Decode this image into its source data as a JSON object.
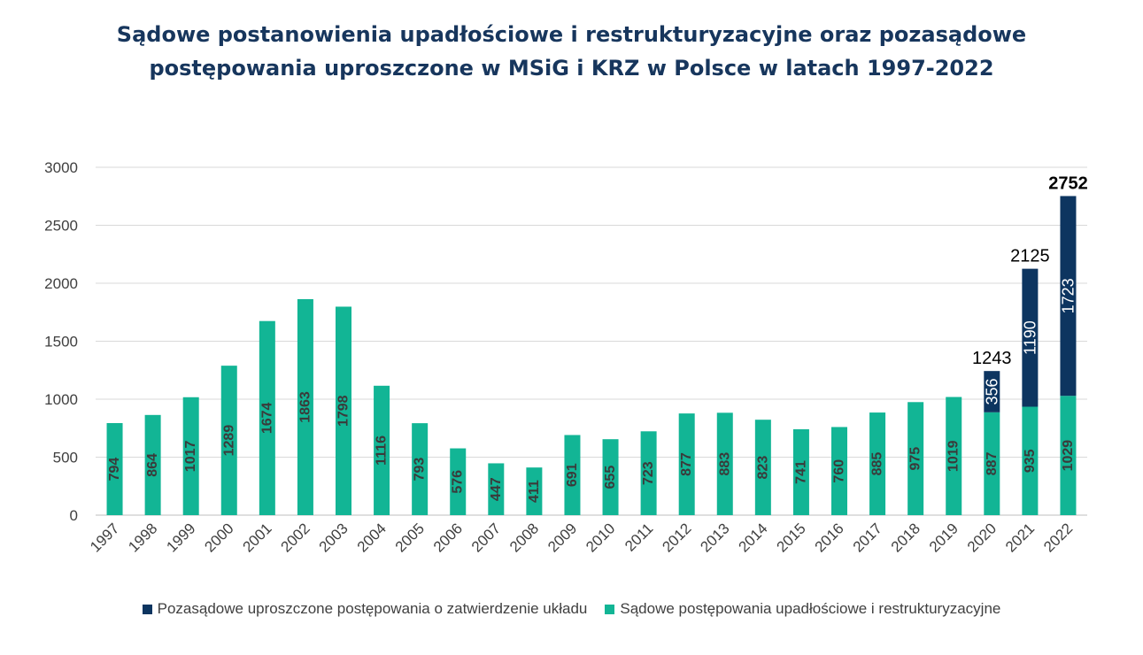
{
  "colors": {
    "court": "#12b595",
    "out_of_court": "#0d3560",
    "title": "#17365d",
    "grid": "#d9d9d9",
    "axis_text": "#404040"
  },
  "chart_data": {
    "type": "bar",
    "stacked": true,
    "title_lines": [
      "Sądowe postanowienia upadłościowe i restrukturyzacyjne oraz pozasądowe",
      "postępowania uproszczone w MSiG i KRZ w Polsce w latach 1997-2022"
    ],
    "categories": [
      "1997",
      "1998",
      "1999",
      "2000",
      "2001",
      "2002",
      "2003",
      "2004",
      "2005",
      "2006",
      "2007",
      "2008",
      "2009",
      "2010",
      "2011",
      "2012",
      "2013",
      "2014",
      "2015",
      "2016",
      "2017",
      "2018",
      "2019",
      "2020",
      "2021",
      "2022"
    ],
    "series": [
      {
        "name": "Sądowe postępowania upadłościowe i restrukturyzacyjne",
        "color_key": "court",
        "values": [
          794,
          864,
          1017,
          1289,
          1674,
          1863,
          1798,
          1116,
          793,
          576,
          447,
          411,
          691,
          655,
          723,
          877,
          883,
          823,
          741,
          760,
          885,
          975,
          1019,
          887,
          935,
          1029
        ]
      },
      {
        "name": "Pozasądowe uproszczone postępowania o zatwierdzenie układu",
        "color_key": "out_of_court",
        "values": [
          0,
          0,
          0,
          0,
          0,
          0,
          0,
          0,
          0,
          0,
          0,
          0,
          0,
          0,
          0,
          0,
          0,
          0,
          0,
          0,
          0,
          0,
          0,
          356,
          1190,
          1723
        ]
      }
    ],
    "totals": [
      {
        "category": "2020",
        "label": "1243"
      },
      {
        "category": "2021",
        "label": "2125"
      },
      {
        "category": "2022",
        "label": "2752"
      }
    ],
    "y_ticks": [
      "0",
      "500",
      "1000",
      "1500",
      "2000",
      "2500",
      "3000"
    ],
    "ylim": [
      0,
      3000
    ],
    "grid": true,
    "legend_position": "bottom",
    "legend_order": [
      1,
      0
    ]
  }
}
